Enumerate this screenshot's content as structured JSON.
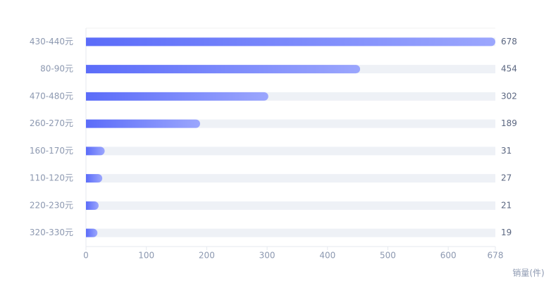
{
  "chart_data": {
    "type": "bar",
    "orientation": "horizontal",
    "categories": [
      "430-440元",
      "80-90元",
      "470-480元",
      "260-270元",
      "160-170元",
      "110-120元",
      "220-230元",
      "320-330元"
    ],
    "values": [
      678,
      454,
      302,
      189,
      31,
      27,
      21,
      19
    ],
    "color": [
      "#5b6cf9",
      "#9ba6fd"
    ],
    "track_color": "#eef1f6",
    "xlim": [
      0,
      678
    ],
    "xticks": [
      0,
      100,
      200,
      300,
      400,
      500,
      600,
      678
    ],
    "xlabel": "销量(件)"
  }
}
